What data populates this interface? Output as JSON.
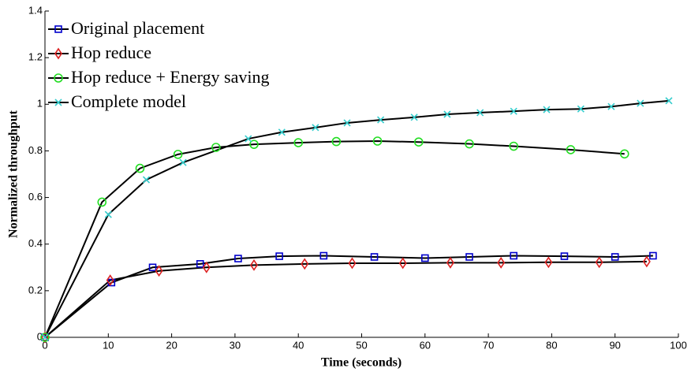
{
  "chart_data": {
    "type": "line",
    "xlabel": "Time (seconds)",
    "ylabel": "Normalized throughput",
    "xlim": [
      0,
      100
    ],
    "ylim": [
      0,
      1.4
    ],
    "xticks": [
      0,
      10,
      20,
      30,
      40,
      50,
      60,
      70,
      80,
      90,
      100
    ],
    "yticks": [
      0,
      0.2,
      0.4,
      0.6,
      0.8,
      1,
      1.2,
      1.4
    ],
    "line_color": "#000000",
    "legend": "upper-left",
    "series": [
      {
        "name": "Original placement",
        "color": "#0000cc",
        "marker": "square",
        "x": [
          0,
          10.5,
          17,
          24.5,
          30.5,
          37,
          44,
          52,
          60,
          67,
          74,
          82,
          90,
          96
        ],
        "values": [
          0,
          0.235,
          0.3,
          0.315,
          0.338,
          0.348,
          0.35,
          0.345,
          0.34,
          0.345,
          0.35,
          0.348,
          0.345,
          0.35
        ]
      },
      {
        "name": "Hop reduce",
        "color": "#dd2222",
        "marker": "diamond",
        "x": [
          0,
          10.3,
          18,
          25.5,
          33,
          41,
          48.5,
          56.5,
          64,
          72,
          79.5,
          87.5,
          95
        ],
        "values": [
          0,
          0.245,
          0.285,
          0.3,
          0.31,
          0.315,
          0.318,
          0.318,
          0.32,
          0.32,
          0.322,
          0.322,
          0.325
        ]
      },
      {
        "name": "Hop reduce + Energy saving",
        "color": "#22dd22",
        "marker": "circle",
        "x": [
          0,
          9,
          15,
          21,
          27,
          33,
          40,
          46,
          52.5,
          59,
          67,
          74,
          83,
          91.5
        ],
        "values": [
          0,
          0.58,
          0.725,
          0.785,
          0.815,
          0.828,
          0.835,
          0.84,
          0.842,
          0.838,
          0.83,
          0.82,
          0.805,
          0.787
        ]
      },
      {
        "name": "Complete model",
        "color": "#33cccc",
        "marker": "x",
        "x": [
          0,
          10,
          16,
          21.8,
          32.1,
          37.4,
          42.7,
          47.7,
          53,
          58.3,
          63.5,
          68.7,
          74,
          79.2,
          84.6,
          89.4,
          94,
          98.5
        ],
        "values": [
          0,
          0.527,
          0.676,
          0.75,
          0.852,
          0.88,
          0.9,
          0.92,
          0.933,
          0.944,
          0.957,
          0.964,
          0.97,
          0.977,
          0.98,
          0.99,
          1.004,
          1.015
        ]
      }
    ]
  }
}
